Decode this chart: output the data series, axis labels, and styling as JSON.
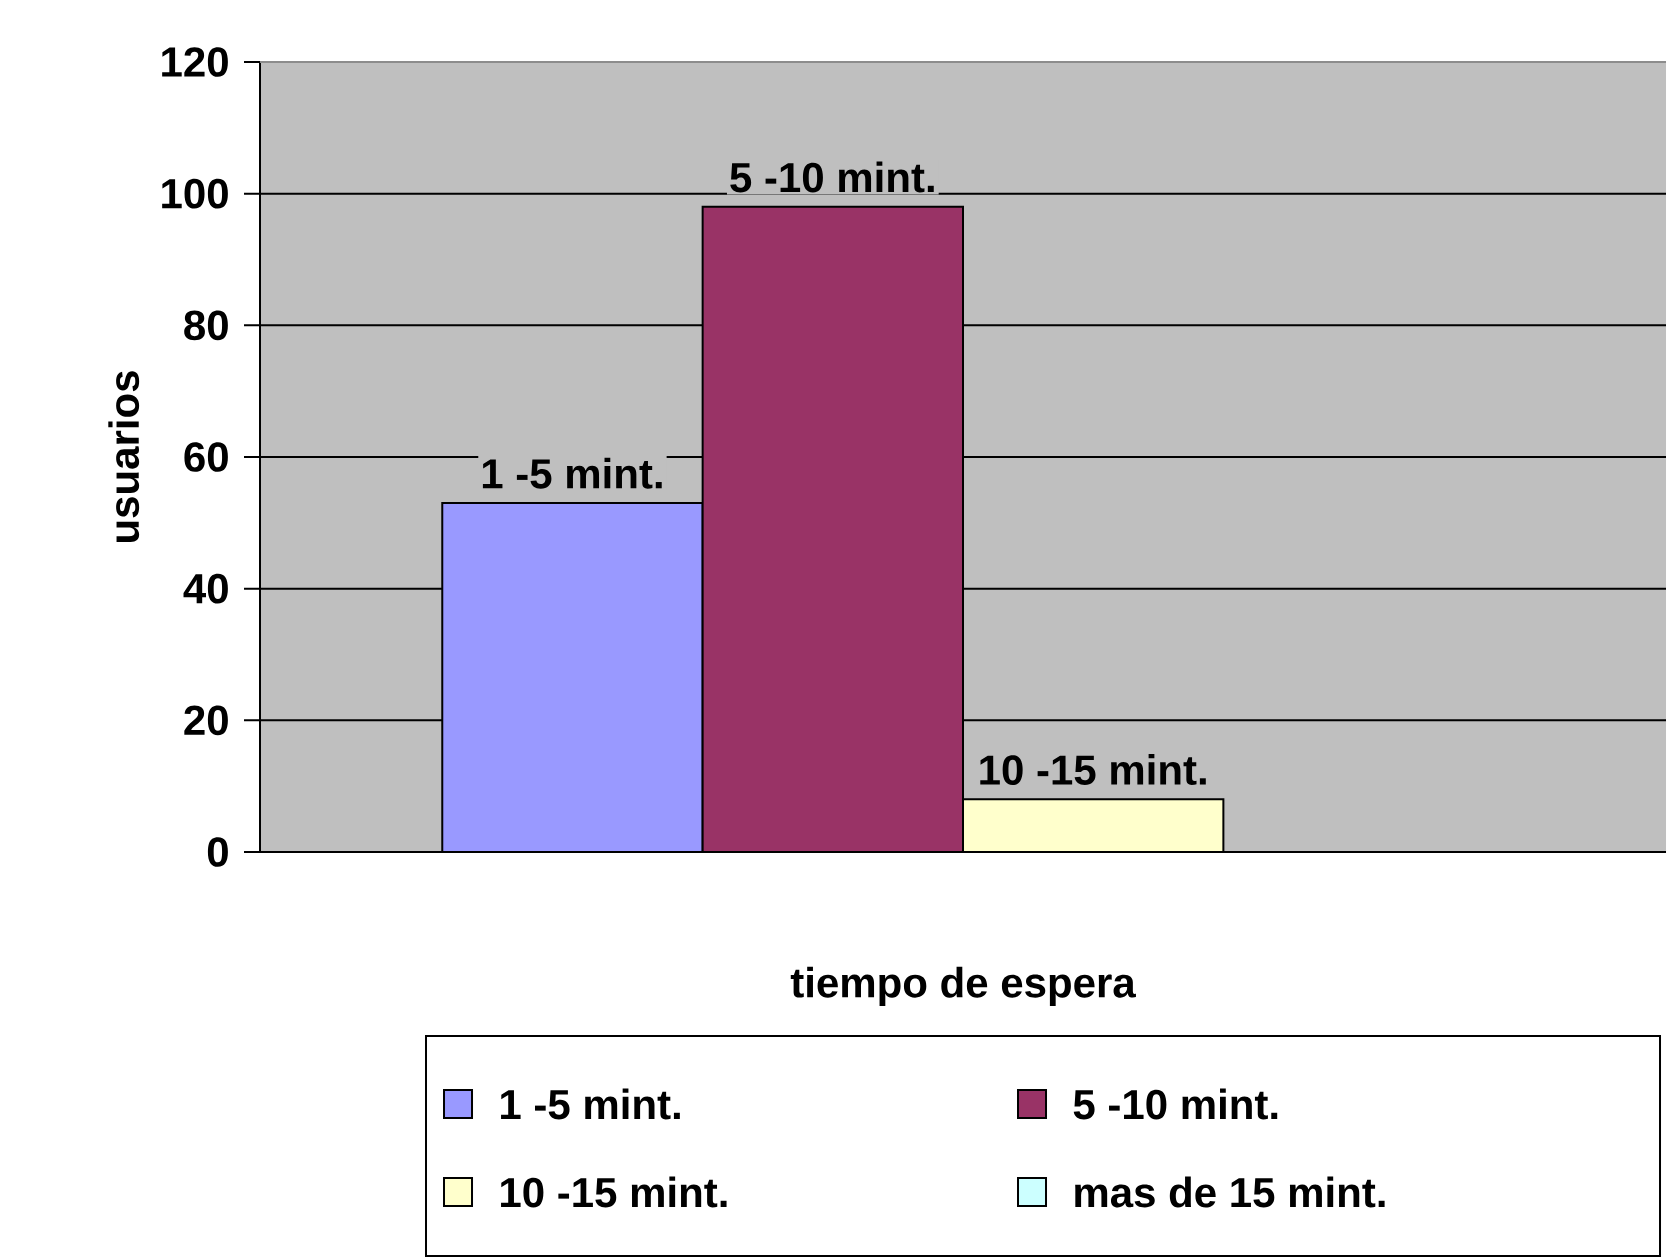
{
  "chart_data": {
    "type": "bar",
    "xlabel": "tiempo de espera",
    "ylabel": "usuarios",
    "categories": [
      null
    ],
    "series": [
      {
        "name": "1 -5 mint.",
        "color": "#9999ff",
        "values": [
          53
        ]
      },
      {
        "name": "5 -10 mint.",
        "color": "#993366",
        "values": [
          98
        ]
      },
      {
        "name": "10 -15 mint.",
        "color": "#ffffcc",
        "values": [
          8
        ]
      },
      {
        "name": "mas de 15 mint.",
        "color": "#ccffff",
        "values": [
          null
        ]
      }
    ],
    "ylim": [
      0,
      120
    ],
    "yticks": [
      0,
      20,
      40,
      60,
      80,
      100,
      120
    ],
    "grid": "y",
    "legend": "bottom"
  }
}
